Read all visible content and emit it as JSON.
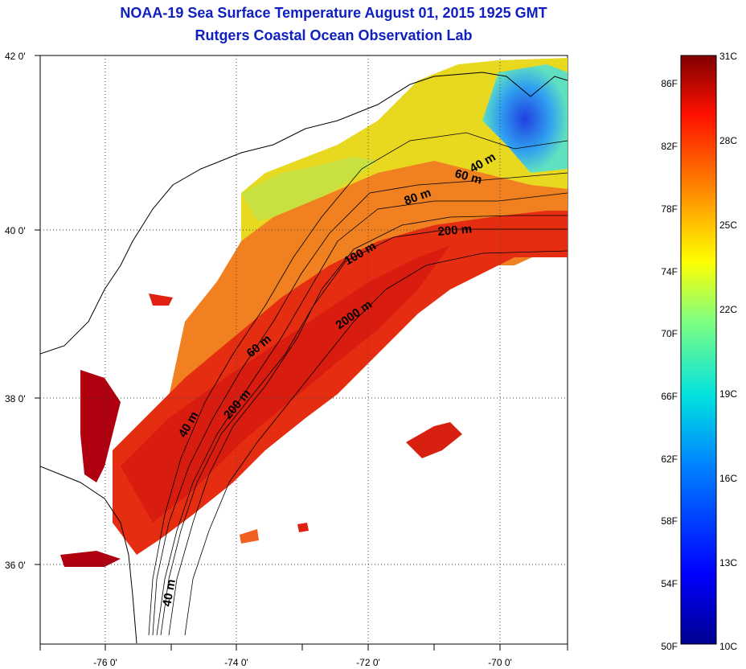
{
  "title": "NOAA-19 Sea Surface Temperature August 01, 2015 1925 GMT",
  "subtitle": "Rutgers Coastal Ocean Observation Lab",
  "lat_labels": [
    "42 0'",
    "40 0'",
    "38 0'",
    "36 0'"
  ],
  "lon_labels": [
    "-76 0'",
    "-74 0'",
    "-72 0'",
    "-70 0'"
  ],
  "contour_labels": [
    "40 m",
    "60 m",
    "80 m",
    "200 m",
    "100 m",
    "2000 m",
    "60 m",
    "40 m",
    "200 m",
    "40 m"
  ],
  "colorbar": {
    "celsius": [
      "31C",
      "28C",
      "25C",
      "22C",
      "19C",
      "16C",
      "13C",
      "10C"
    ],
    "fahrenheit": [
      "86F",
      "82F",
      "78F",
      "74F",
      "70F",
      "66F",
      "62F",
      "58F",
      "54F",
      "50F"
    ]
  },
  "colors": {
    "title": "#1020c0",
    "land": "#ffffff",
    "warm": "#e02010",
    "hot": "#a00010",
    "cool": "#1040e0"
  }
}
